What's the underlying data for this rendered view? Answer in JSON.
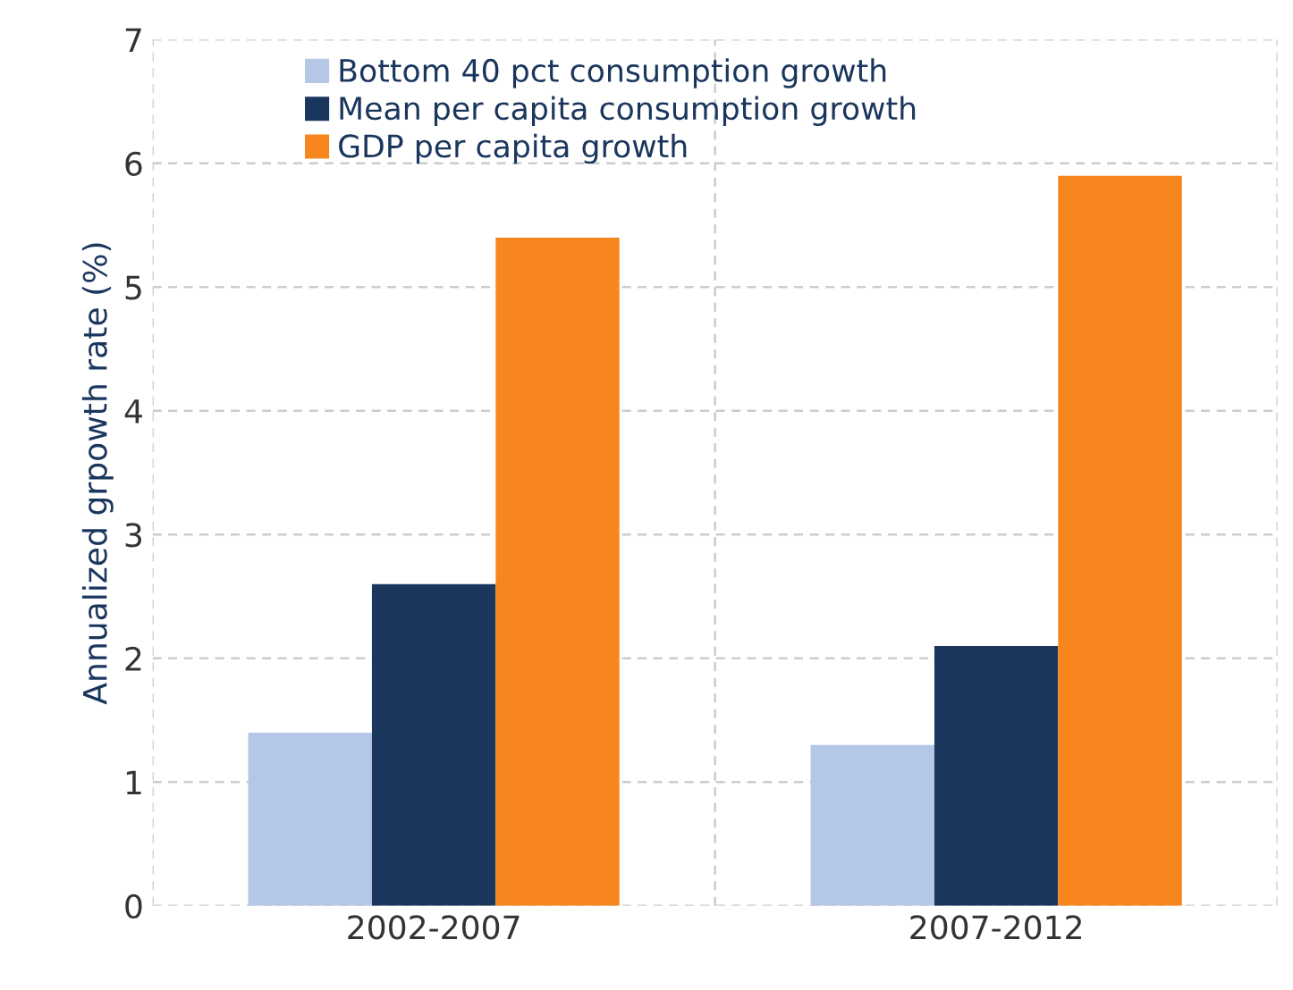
{
  "chart_data": {
    "type": "bar",
    "ylabel": "Annualized grpowth rate (%)",
    "categories": [
      "2002-2007",
      "2007-2012"
    ],
    "series": [
      {
        "name": "Bottom 40 pct consumption growth",
        "color": "#b4c7e7",
        "values": [
          1.4,
          1.3
        ]
      },
      {
        "name": "Mean per capita consumption growth",
        "color": "#1b365d",
        "values": [
          2.6,
          2.1
        ]
      },
      {
        "name": "GDP per capita growth",
        "color": "#f7861e",
        "values": [
          5.4,
          5.9
        ]
      }
    ],
    "ylim": [
      0,
      7
    ],
    "yticks": [
      0,
      1,
      2,
      3,
      4,
      5,
      6,
      7
    ],
    "grid": true,
    "legend": "top left"
  }
}
